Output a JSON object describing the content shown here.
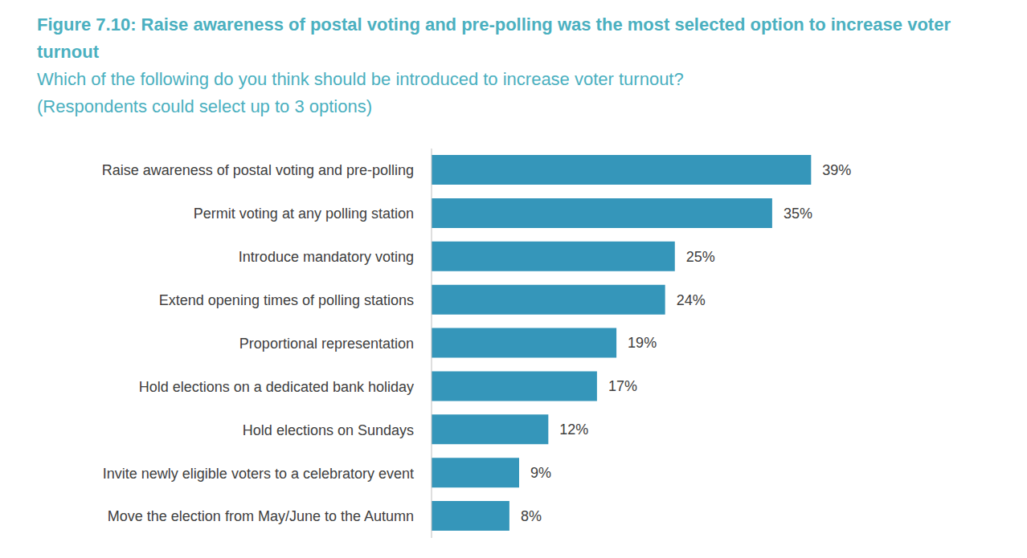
{
  "chart_data": {
    "type": "bar",
    "orientation": "horizontal",
    "title": "Figure 7.10: Raise awareness of postal voting and pre-polling was the most selected option to increase voter turnout",
    "subtitle": "Which of the following do you think should be introduced to increase voter turnout?",
    "annotations": [
      "(Respondents could select up to 3 options)"
    ],
    "categories": [
      "Raise awareness of postal voting and pre-polling",
      "Permit voting at any polling station",
      "Introduce mandatory voting",
      "Extend opening times of polling stations",
      "Proportional representation",
      "Hold elections on a dedicated bank holiday",
      "Hold elections on Sundays",
      "Invite newly eligible voters to a celebratory event",
      "Move the election from May/June to the Autumn"
    ],
    "values": [
      39,
      35,
      25,
      24,
      19,
      17,
      12,
      9,
      8
    ],
    "value_labels": [
      "39%",
      "35%",
      "25%",
      "24%",
      "19%",
      "17%",
      "12%",
      "9%",
      "8%"
    ],
    "color": "#3596ba",
    "xlim": [
      0,
      45
    ],
    "data_labels": true,
    "tick_labels": "y",
    "grid": false
  }
}
